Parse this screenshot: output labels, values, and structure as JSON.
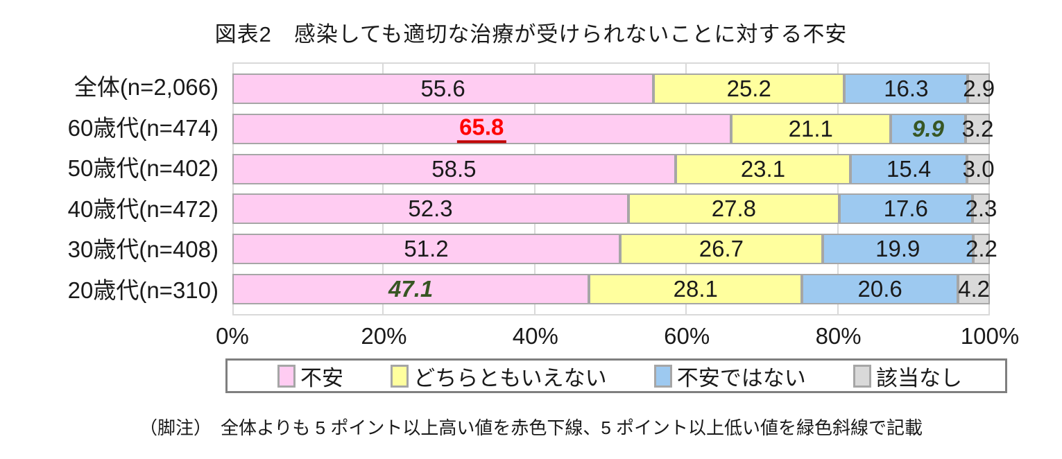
{
  "title": "図表2　感染しても適切な治療が受けられないことに対する不安",
  "footnote": "（脚注）　全体よりも 5 ポイント以上高い値を赤色下線、5 ポイント以上低い値を緑色斜線で記載",
  "colors": {
    "pink": "#FFCCF2",
    "yellow": "#FFFF9E",
    "blue": "#9DC9F0",
    "gray": "#D9D9D9",
    "bar_border": "#A6A6A6",
    "gridline": "#D9D9D9",
    "legend_border": "#7F7F7F",
    "highlight_red": "#FF0000",
    "highlight_red_underline": "#C00000",
    "highlight_green": "#375623"
  },
  "chart_data": {
    "type": "bar",
    "orientation": "horizontal-stacked",
    "title": "図表2　感染しても適切な治療が受けられないことに対する不安",
    "categories": [
      "全体(n=2,066)",
      "60歳代(n=474)",
      "50歳代(n=402)",
      "40歳代(n=472)",
      "30歳代(n=408)",
      "20歳代(n=310)"
    ],
    "series": [
      {
        "name": "不安",
        "color": "#FFCCF2",
        "values": [
          55.6,
          65.8,
          58.5,
          52.3,
          51.2,
          47.1
        ],
        "labels": [
          "55.6",
          "65.8",
          "58.5",
          "52.3",
          "51.2",
          "47.1"
        ]
      },
      {
        "name": "どちらともいえない",
        "color": "#FFFF9E",
        "values": [
          25.2,
          21.1,
          23.1,
          27.8,
          26.7,
          28.1
        ],
        "labels": [
          "25.2",
          "21.1",
          "23.1",
          "27.8",
          "26.7",
          "28.1"
        ]
      },
      {
        "name": "不安ではない",
        "color": "#9DC9F0",
        "values": [
          16.3,
          9.9,
          15.4,
          17.6,
          19.9,
          20.6
        ],
        "labels": [
          "16.3",
          "9.9",
          "15.4",
          "17.6",
          "19.9",
          "20.6"
        ]
      },
      {
        "name": "該当なし",
        "color": "#D9D9D9",
        "values": [
          2.9,
          3.2,
          3.0,
          2.3,
          2.2,
          4.2
        ],
        "labels": [
          "2.9",
          "3.2",
          "3.0",
          "2.3",
          "2.2",
          "4.2"
        ]
      }
    ],
    "value_styles": [
      [
        "normal",
        "normal",
        "normal",
        "normal"
      ],
      [
        "red-underline",
        "normal",
        "green-italic",
        "normal"
      ],
      [
        "normal",
        "normal",
        "normal",
        "normal"
      ],
      [
        "normal",
        "normal",
        "normal",
        "normal"
      ],
      [
        "normal",
        "normal",
        "normal",
        "normal"
      ],
      [
        "green-italic",
        "normal",
        "normal",
        "normal"
      ]
    ],
    "x_ticks": [
      {
        "label": "0%",
        "value": 0
      },
      {
        "label": "20%",
        "value": 20
      },
      {
        "label": "40%",
        "value": 40
      },
      {
        "label": "60%",
        "value": 60
      },
      {
        "label": "80%",
        "value": 80
      },
      {
        "label": "100%",
        "value": 100
      }
    ],
    "xlim": [
      0,
      100
    ],
    "grid": true,
    "legend_position": "bottom"
  }
}
